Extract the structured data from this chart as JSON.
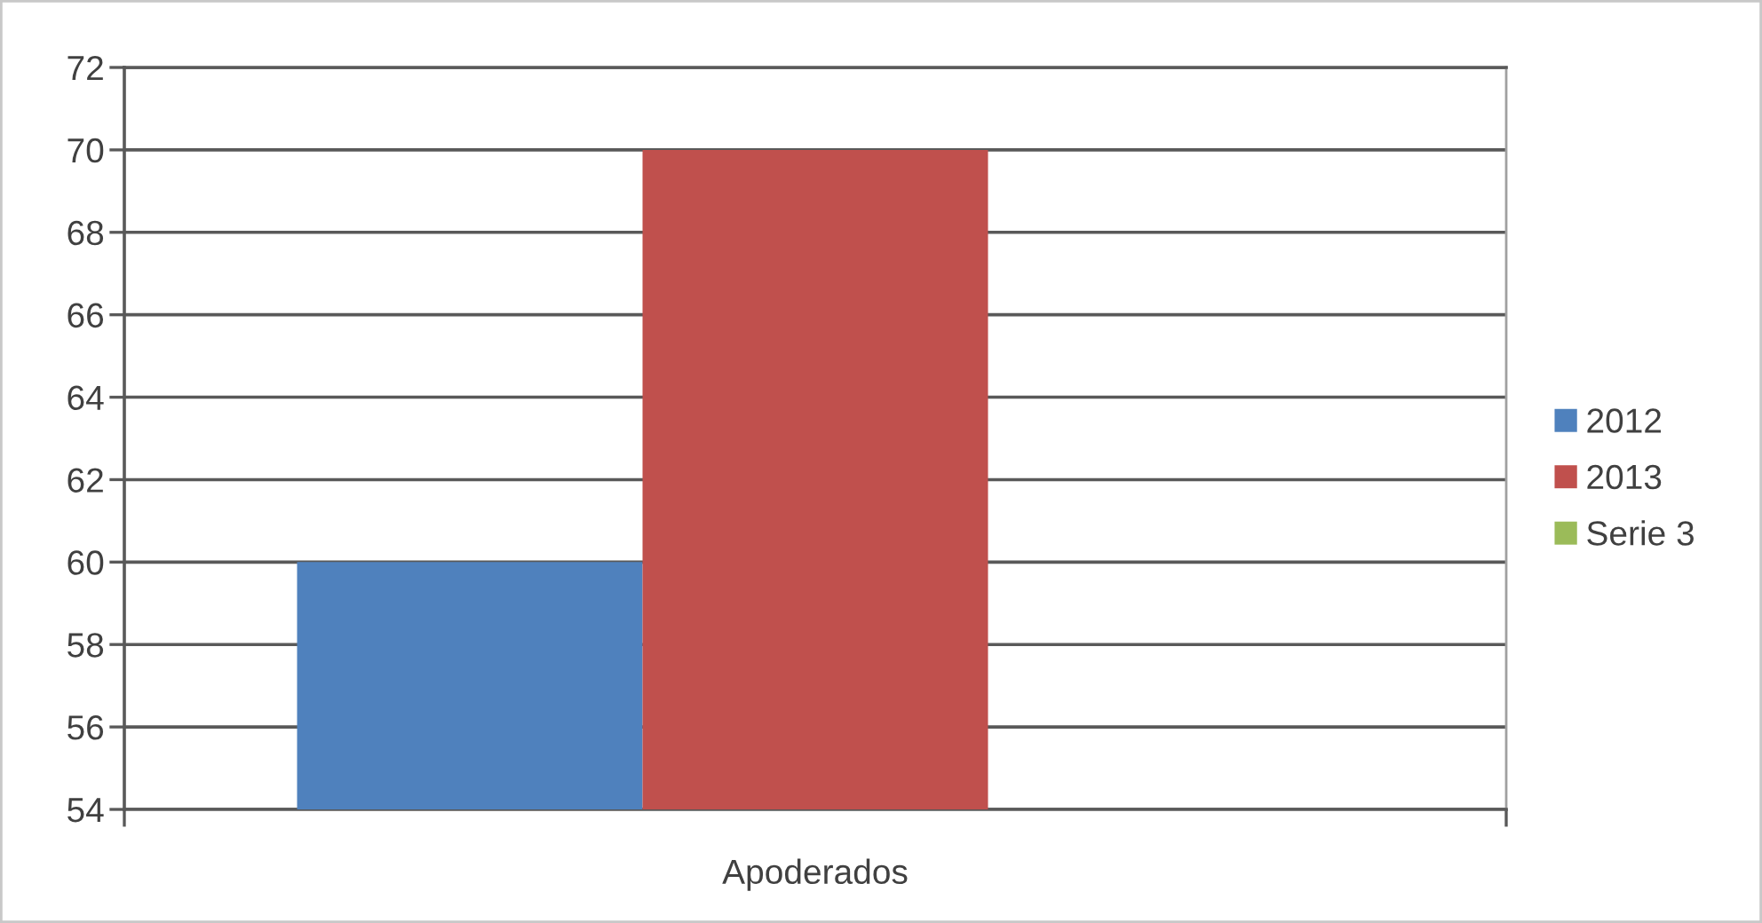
{
  "chart_data": {
    "type": "bar",
    "categories": [
      "Apoderados"
    ],
    "series": [
      {
        "name": "2012",
        "color": "#4f81bd",
        "values": [
          60
        ]
      },
      {
        "name": "2013",
        "color": "#c0504d",
        "values": [
          70
        ]
      },
      {
        "name": "Serie 3",
        "color": "#9bbb59",
        "values": [
          null
        ]
      }
    ],
    "ylim": [
      54,
      72
    ],
    "yticks": [
      54,
      56,
      58,
      60,
      62,
      64,
      66,
      68,
      70,
      72
    ],
    "grid": "y",
    "legend": "right"
  }
}
